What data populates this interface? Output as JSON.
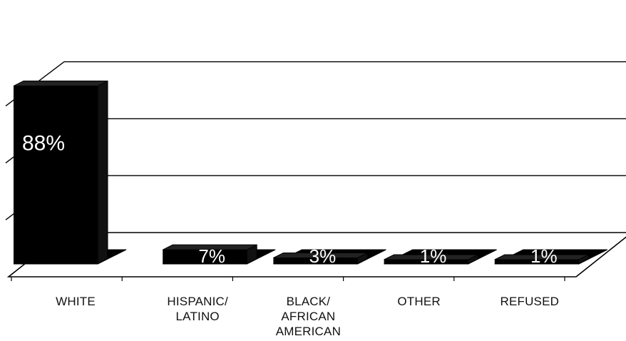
{
  "chart_data": {
    "type": "bar",
    "three_d": true,
    "categories": [
      "WHITE",
      "HISPANIC/ LATINO",
      "BLACK/ AFRICAN AMERICAN",
      "OTHER",
      "REFUSED"
    ],
    "category_lines": [
      [
        "WHITE"
      ],
      [
        "HISPANIC/",
        "LATINO"
      ],
      [
        "BLACK/",
        "AFRICAN",
        "AMERICAN"
      ],
      [
        "OTHER"
      ],
      [
        "REFUSED"
      ]
    ],
    "values": [
      88,
      7,
      3,
      1,
      1
    ],
    "data_labels": [
      "88%",
      "7%",
      "3%",
      "1%",
      "1%"
    ],
    "ylim": [
      0,
      100
    ],
    "grid": true,
    "legend": "none",
    "title": "",
    "xlabel": "",
    "ylabel": "",
    "colors": {
      "bar": "#000000",
      "grid": "#000000",
      "background": "#ffffff",
      "label": "#ffffff"
    }
  }
}
